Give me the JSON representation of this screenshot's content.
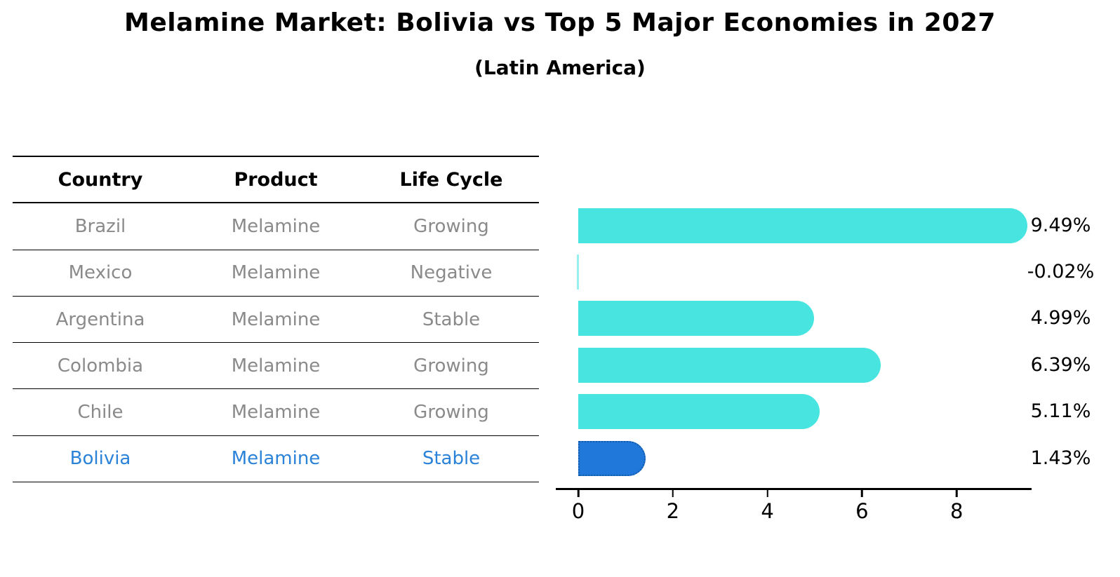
{
  "header": {
    "title": "Melamine Market: Bolivia vs Top 5 Major Economies in 2027",
    "subtitle": "(Latin America)"
  },
  "table": {
    "headers": [
      "Country",
      "Product",
      "Life Cycle"
    ],
    "rows": [
      {
        "country": "Brazil",
        "product": "Melamine",
        "life_cycle": "Growing"
      },
      {
        "country": "Mexico",
        "product": "Melamine",
        "life_cycle": "Negative"
      },
      {
        "country": "Argentina",
        "product": "Melamine",
        "life_cycle": "Stable"
      },
      {
        "country": "Colombia",
        "product": "Melamine",
        "life_cycle": "Growing"
      },
      {
        "country": "Chile",
        "product": "Melamine",
        "life_cycle": "Growing"
      },
      {
        "country": "Bolivia",
        "product": "Melamine",
        "life_cycle": "Stable"
      }
    ],
    "highlight_row": "Bolivia"
  },
  "chart_data": {
    "type": "bar",
    "orientation": "horizontal",
    "title": "Melamine Market: Bolivia vs Top 5 Major Economies in 2027",
    "subtitle": "(Latin America)",
    "categories": [
      "Brazil",
      "Mexico",
      "Argentina",
      "Colombia",
      "Chile",
      "Bolivia"
    ],
    "values": [
      9.49,
      -0.02,
      4.99,
      6.39,
      5.11,
      1.43
    ],
    "value_labels": [
      "9.49%",
      "-0.02%",
      "4.99%",
      "6.39%",
      "5.11%",
      "1.43%"
    ],
    "xlabel": "",
    "ylabel": "",
    "xlim": [
      0,
      10
    ],
    "x_ticks": [
      0,
      2,
      4,
      6,
      8
    ],
    "tick_labels": [
      "0",
      "2",
      "4",
      "6",
      "8"
    ],
    "grid": false,
    "legend": false,
    "highlight_index": 5
  },
  "colors": {
    "bar_cyan": "#47e4e0",
    "bar_highlight_blue": "#2078db",
    "highlight_text_blue": "#2b82d9",
    "text_gray": "#8a8a8a",
    "text_black": "#000000"
  }
}
